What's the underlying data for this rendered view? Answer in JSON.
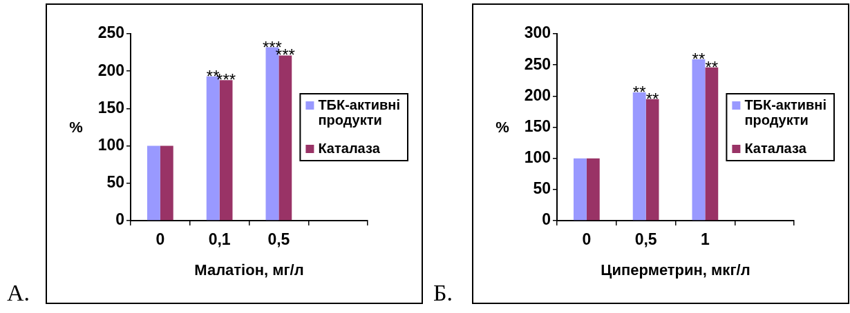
{
  "chart_data": [
    {
      "type": "bar",
      "categories": [
        "0",
        "0,1",
        "0,5",
        null
      ],
      "xlabel": "Малатіон, мг/л",
      "ylabel": "%",
      "ylim": [
        0,
        250
      ],
      "yticks": [
        0,
        50,
        100,
        150,
        200,
        250
      ],
      "grid": false,
      "legend": "right",
      "annotations": [
        "А."
      ],
      "series": [
        {
          "name": "ТБК-активні продукти",
          "color": "#9999ff",
          "values": [
            100,
            193,
            232,
            null
          ],
          "value_labels": [
            null,
            "**",
            "***",
            null
          ]
        },
        {
          "name": "Каталаза",
          "color": "#993366",
          "values": [
            100,
            188,
            221,
            null
          ],
          "value_labels": [
            null,
            "***",
            "***",
            null
          ]
        }
      ]
    },
    {
      "type": "bar",
      "categories": [
        "0",
        "0,5",
        "1",
        null
      ],
      "xlabel": "Циперметрин, мкг/л",
      "ylabel": "%",
      "ylim": [
        0,
        300
      ],
      "yticks": [
        0,
        50,
        100,
        150,
        200,
        250,
        300
      ],
      "grid": false,
      "legend": "right",
      "annotations": [
        "Б."
      ],
      "series": [
        {
          "name": "ТБК-активні продукти",
          "color": "#9999ff",
          "values": [
            100,
            206,
            259,
            null
          ],
          "value_labels": [
            null,
            "**",
            "**",
            null
          ]
        },
        {
          "name": "Каталаза",
          "color": "#993366",
          "values": [
            100,
            195,
            246,
            null
          ],
          "value_labels": [
            null,
            "**",
            "**",
            null
          ]
        }
      ]
    }
  ]
}
